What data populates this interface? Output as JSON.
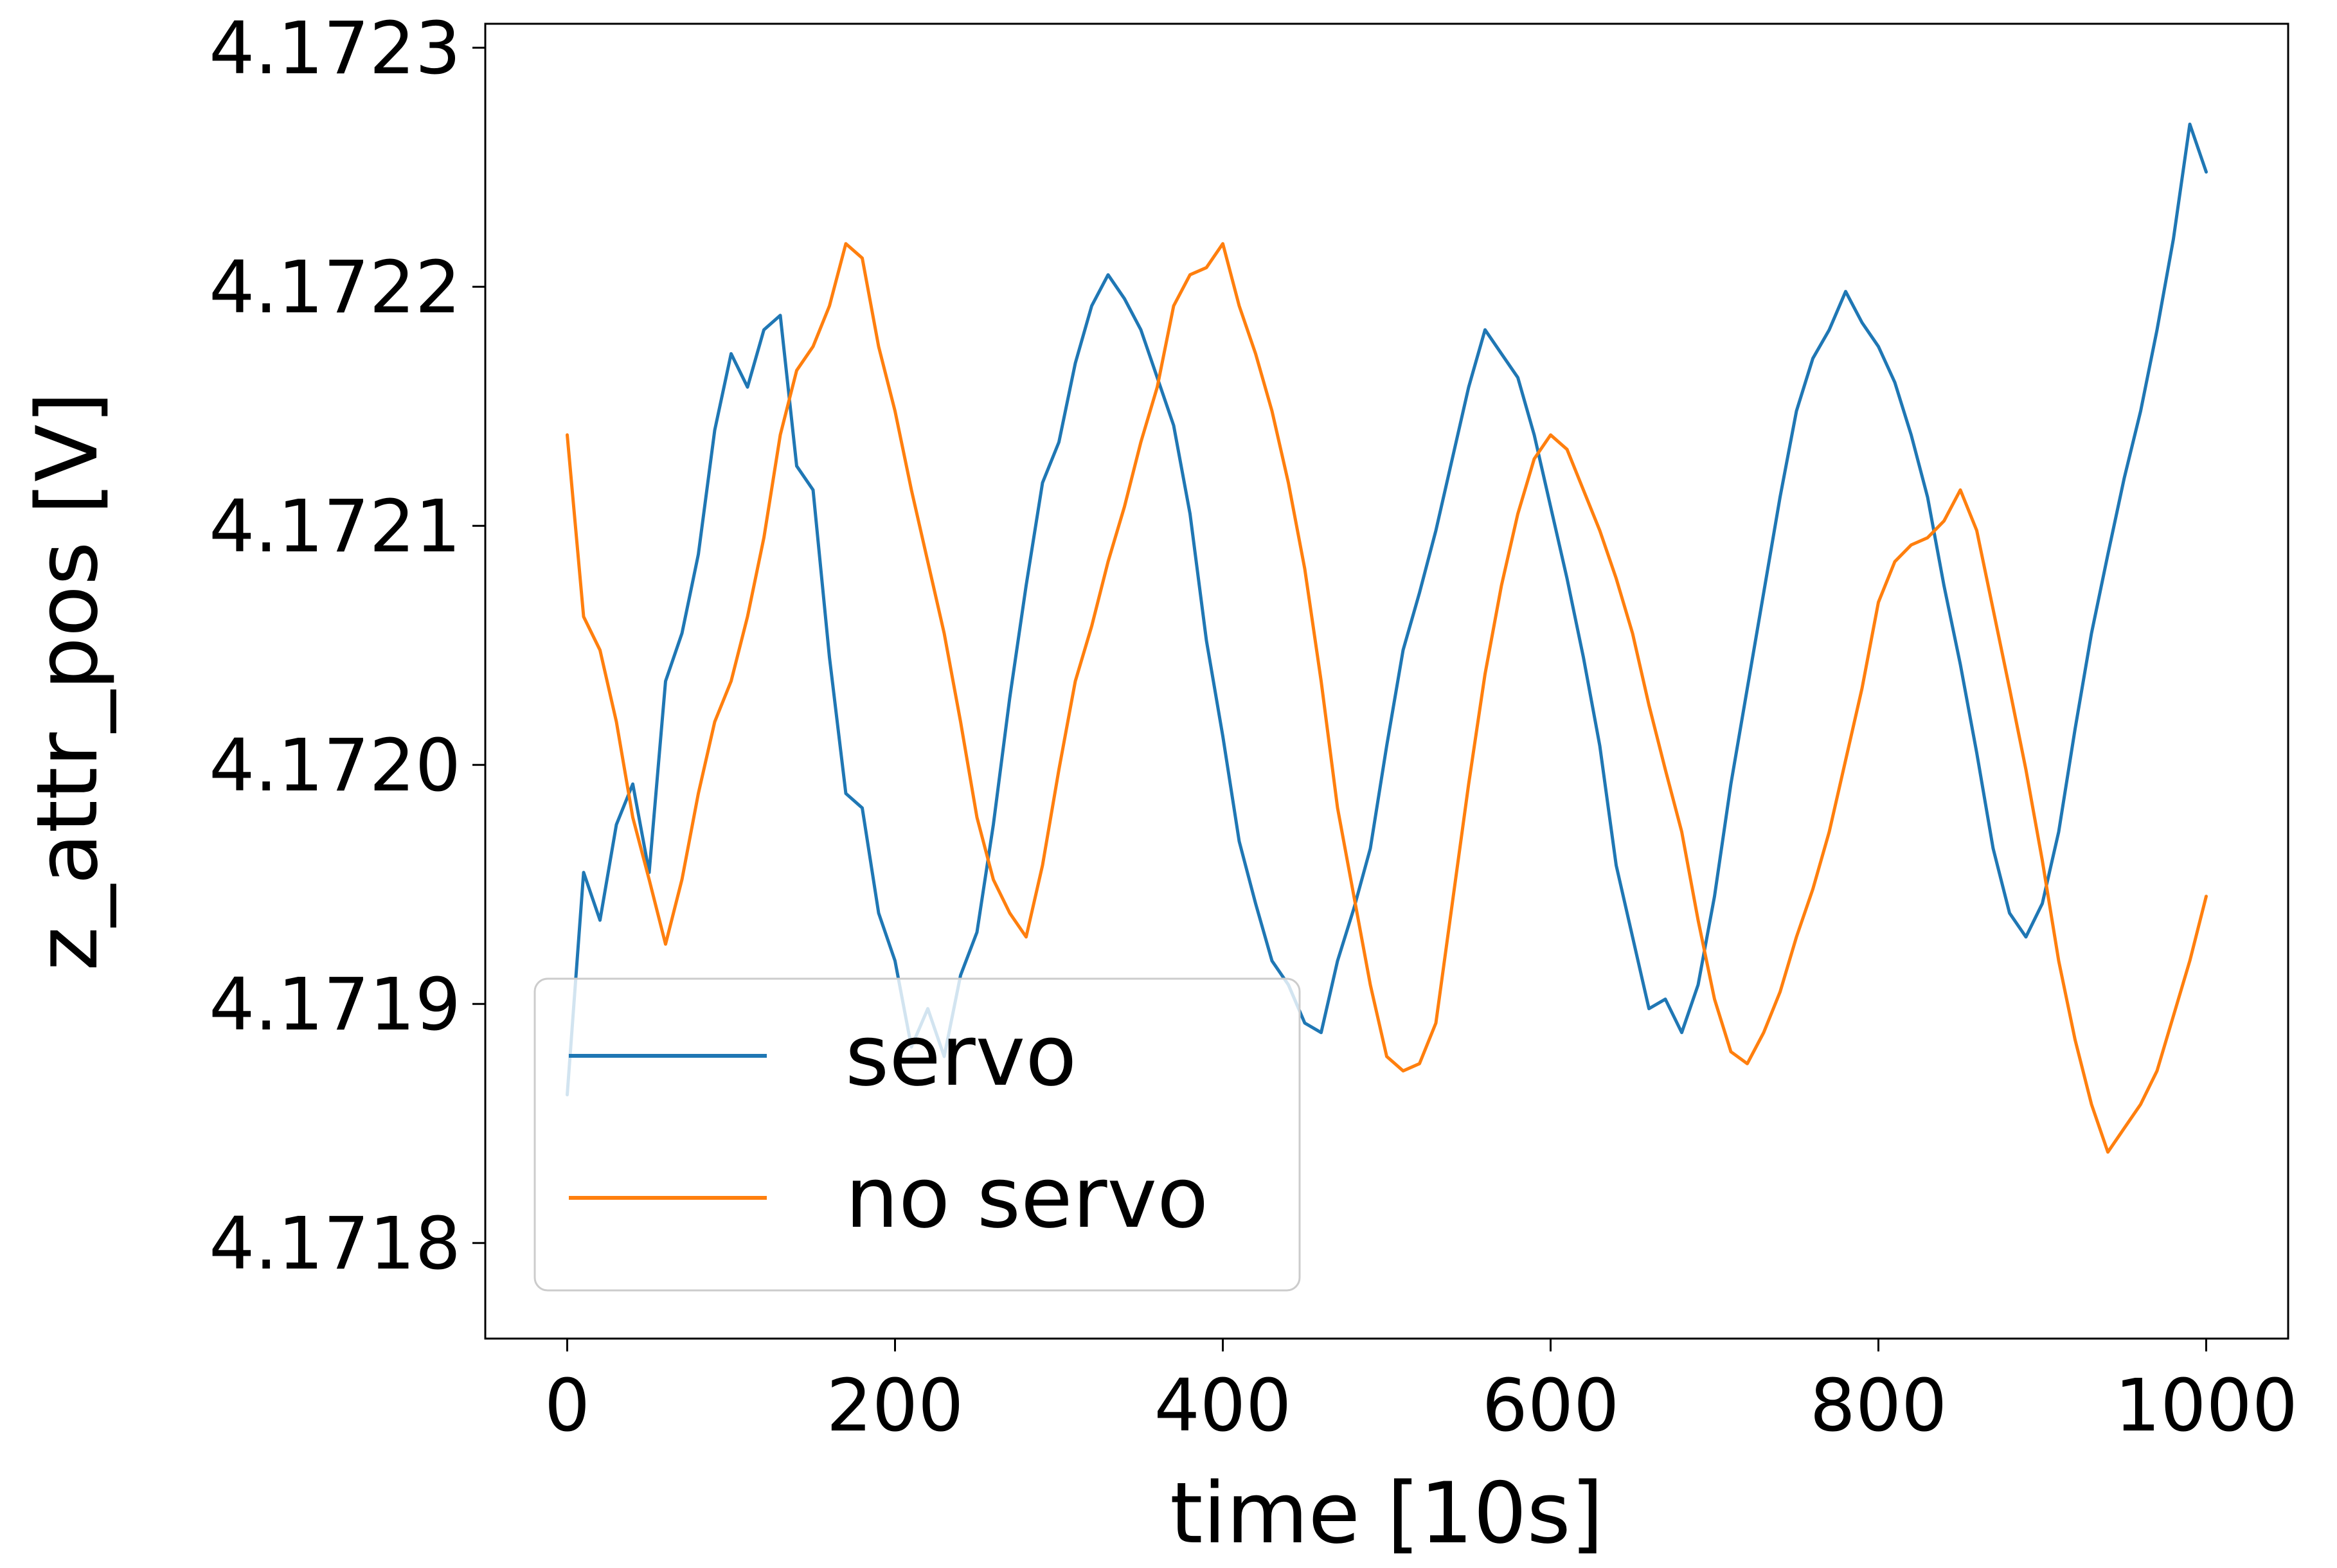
{
  "chart_data": {
    "type": "line",
    "xlabel": "time [10s]",
    "ylabel": "z_attr_pos [V]",
    "xlim": [
      -50,
      1050
    ],
    "ylim": [
      4.17176,
      4.17231
    ],
    "x_ticks": [
      0,
      200,
      400,
      600,
      800,
      1000
    ],
    "x_tick_labels": [
      "0",
      "200",
      "400",
      "600",
      "800",
      "1000"
    ],
    "y_ticks": [
      4.1718,
      4.1719,
      4.172,
      4.1721,
      4.1722,
      4.1723
    ],
    "y_tick_labels": [
      "4.1718",
      "4.1719",
      "4.1720",
      "4.1721",
      "4.1722",
      "4.1723"
    ],
    "grid": false,
    "legend_position": "lower-left",
    "x": [
      0,
      10,
      20,
      30,
      40,
      50,
      60,
      70,
      80,
      90,
      100,
      110,
      120,
      130,
      140,
      150,
      160,
      170,
      180,
      190,
      200,
      210,
      220,
      230,
      240,
      250,
      260,
      270,
      280,
      290,
      300,
      310,
      320,
      330,
      340,
      350,
      360,
      370,
      380,
      390,
      400,
      410,
      420,
      430,
      440,
      450,
      460,
      470,
      480,
      490,
      500,
      510,
      520,
      530,
      540,
      550,
      560,
      570,
      580,
      590,
      600,
      610,
      620,
      630,
      640,
      650,
      660,
      670,
      680,
      690,
      700,
      710,
      720,
      730,
      740,
      750,
      760,
      770,
      780,
      790,
      800,
      810,
      820,
      830,
      840,
      850,
      860,
      870,
      880,
      890,
      900,
      910,
      920,
      930,
      940,
      950,
      960,
      970,
      980,
      990,
      1000
    ],
    "series": [
      {
        "name": "servo",
        "color": "#1f77b4",
        "values": [
          4.171862,
          4.171955,
          4.171935,
          4.171975,
          4.171992,
          4.171955,
          4.172035,
          4.172055,
          4.172088,
          4.17214,
          4.172172,
          4.172158,
          4.172182,
          4.172188,
          4.172125,
          4.172115,
          4.172045,
          4.171988,
          4.171982,
          4.171938,
          4.171918,
          4.171882,
          4.171898,
          4.171878,
          4.171912,
          4.17193,
          4.171975,
          4.172028,
          4.172075,
          4.172118,
          4.172135,
          4.172168,
          4.172192,
          4.172205,
          4.172195,
          4.172182,
          4.172162,
          4.172142,
          4.172105,
          4.172052,
          4.172012,
          4.171968,
          4.171942,
          4.171918,
          4.171908,
          4.171892,
          4.171888,
          4.171918,
          4.17194,
          4.171965,
          4.172008,
          4.172048,
          4.172072,
          4.172098,
          4.172128,
          4.172158,
          4.172182,
          4.172172,
          4.172162,
          4.172138,
          4.172108,
          4.172078,
          4.172045,
          4.172008,
          4.171958,
          4.171928,
          4.171898,
          4.171902,
          4.171888,
          4.171908,
          4.171945,
          4.171992,
          4.172032,
          4.172072,
          4.172112,
          4.172148,
          4.17217,
          4.172182,
          4.172198,
          4.172185,
          4.172175,
          4.17216,
          4.172138,
          4.172112,
          4.172075,
          4.172042,
          4.172005,
          4.171965,
          4.171938,
          4.171928,
          4.171942,
          4.171972,
          4.172015,
          4.172055,
          4.172088,
          4.17212,
          4.172148,
          4.172182,
          4.17222,
          4.172268,
          4.172248
        ]
      },
      {
        "name": "no servo",
        "color": "#ff7f0e",
        "values": [
          4.172138,
          4.172062,
          4.172048,
          4.172018,
          4.171978,
          4.171952,
          4.171925,
          4.171952,
          4.171988,
          4.172018,
          4.172035,
          4.172062,
          4.172095,
          4.172138,
          4.172165,
          4.172175,
          4.172192,
          4.172218,
          4.172212,
          4.172175,
          4.172148,
          4.172115,
          4.172085,
          4.172055,
          4.172018,
          4.171978,
          4.171952,
          4.171938,
          4.171928,
          4.171958,
          4.171998,
          4.172035,
          4.172058,
          4.172085,
          4.172108,
          4.172135,
          4.172158,
          4.172192,
          4.172205,
          4.172208,
          4.172218,
          4.172192,
          4.172172,
          4.172148,
          4.172118,
          4.172082,
          4.172035,
          4.171982,
          4.171945,
          4.171908,
          4.171878,
          4.171872,
          4.171875,
          4.171892,
          4.171942,
          4.171992,
          4.172038,
          4.172075,
          4.172105,
          4.172128,
          4.172138,
          4.172132,
          4.172115,
          4.172098,
          4.172078,
          4.172055,
          4.172025,
          4.171998,
          4.171972,
          4.171935,
          4.171902,
          4.17188,
          4.171875,
          4.171888,
          4.171905,
          4.171928,
          4.171948,
          4.171972,
          4.172002,
          4.172032,
          4.172068,
          4.172085,
          4.172092,
          4.172095,
          4.172102,
          4.172115,
          4.172098,
          4.172065,
          4.172032,
          4.171998,
          4.17196,
          4.171918,
          4.171885,
          4.171858,
          4.171838,
          4.171848,
          4.171858,
          4.171872,
          4.171895,
          4.171918,
          4.171945
        ]
      }
    ]
  }
}
